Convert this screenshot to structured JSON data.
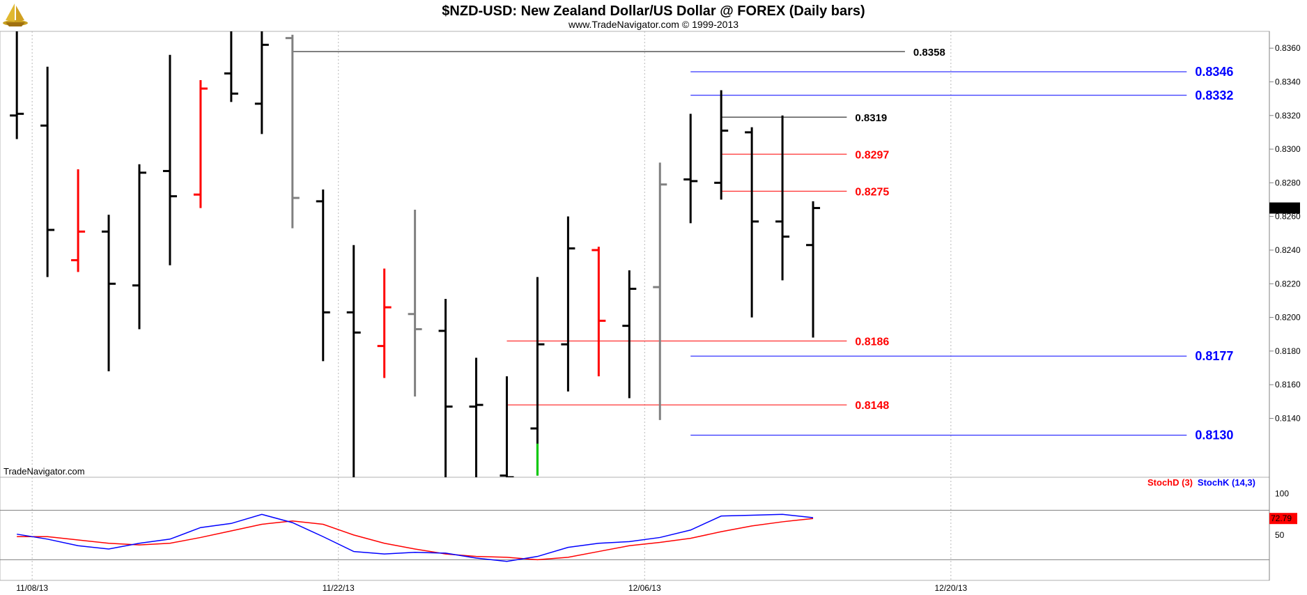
{
  "title": "$NZD-USD:  New Zealand Dollar/US Dollar @ FOREX  (Daily bars)",
  "subtitle": "www.TradeNavigator.com © 1999-2013",
  "watermark": "TradeNavigator.com",
  "logo_icon": "sailing-ship-icon",
  "colors": {
    "up_bar": "#000000",
    "down_bar": "#ff0000",
    "neutral_bar": "#808080",
    "signal_bar": "#00cc00",
    "stoch_d": "#ff0000",
    "stoch_k": "#0000ff",
    "level_black": "#000000",
    "level_red": "#ff0000",
    "level_blue": "#0000ff"
  },
  "chart_data": [
    {
      "type": "ohlc",
      "ylim": [
        0.8105,
        0.837
      ],
      "y_ticks": [
        "0.8360",
        "0.8340",
        "0.8320",
        "0.8300",
        "0.8280",
        "0.8260",
        "0.8240",
        "0.8220",
        "0.8200",
        "0.8180",
        "0.8160",
        "0.8140"
      ],
      "x_ticks": [
        "11/08/13",
        "11/22/13",
        "12/06/13",
        "12/20/13"
      ],
      "x_tick_index": [
        0.5,
        10.5,
        20.5,
        30.5
      ],
      "x_range": [
        -0.55,
        40.9
      ],
      "grid": "vertical-dotted",
      "last_price": "0.8265",
      "bars": [
        {
          "o": 0.832,
          "h": 0.8385,
          "l": 0.8306,
          "c": 0.8321,
          "color": "up"
        },
        {
          "o": 0.8314,
          "h": 0.8349,
          "l": 0.8224,
          "c": 0.8252,
          "color": "up"
        },
        {
          "o": 0.8234,
          "h": 0.8288,
          "l": 0.8227,
          "c": 0.8251,
          "color": "down"
        },
        {
          "o": 0.8251,
          "h": 0.8261,
          "l": 0.8168,
          "c": 0.822,
          "color": "up"
        },
        {
          "o": 0.8219,
          "h": 0.8291,
          "l": 0.8193,
          "c": 0.8286,
          "color": "up"
        },
        {
          "o": 0.8287,
          "h": 0.8356,
          "l": 0.8231,
          "c": 0.8272,
          "color": "up"
        },
        {
          "o": 0.8273,
          "h": 0.8341,
          "l": 0.8265,
          "c": 0.8336,
          "color": "down"
        },
        {
          "o": 0.8345,
          "h": 0.8375,
          "l": 0.8328,
          "c": 0.8333,
          "color": "up"
        },
        {
          "o": 0.8327,
          "h": 0.8372,
          "l": 0.8309,
          "c": 0.8362,
          "color": "up"
        },
        {
          "o": 0.8366,
          "h": 0.8368,
          "l": 0.8253,
          "c": 0.8271,
          "color": "neutral"
        },
        {
          "o": 0.8269,
          "h": 0.8276,
          "l": 0.8174,
          "c": 0.8203,
          "color": "up"
        },
        {
          "o": 0.8203,
          "h": 0.8243,
          "l": 0.8105,
          "c": 0.8191,
          "color": "up"
        },
        {
          "o": 0.8183,
          "h": 0.8229,
          "l": 0.8164,
          "c": 0.8206,
          "color": "down"
        },
        {
          "o": 0.8202,
          "h": 0.8264,
          "l": 0.8153,
          "c": 0.8193,
          "color": "neutral"
        },
        {
          "o": 0.8192,
          "h": 0.8211,
          "l": 0.8102,
          "c": 0.8147,
          "color": "up"
        },
        {
          "o": 0.8147,
          "h": 0.8176,
          "l": 0.8102,
          "c": 0.8148,
          "color": "up"
        },
        {
          "o": 0.8106,
          "h": 0.8165,
          "l": 0.8102,
          "c": 0.8105,
          "color": "up"
        },
        {
          "o": 0.8134,
          "h": 0.8224,
          "l": 0.8106,
          "c": 0.8184,
          "color": "up"
        },
        {
          "o": 0.8184,
          "h": 0.826,
          "l": 0.8156,
          "c": 0.8241,
          "color": "up"
        },
        {
          "o": 0.824,
          "h": 0.8242,
          "l": 0.8165,
          "c": 0.8198,
          "color": "down"
        },
        {
          "o": 0.8195,
          "h": 0.8228,
          "l": 0.8152,
          "c": 0.8217,
          "color": "up"
        },
        {
          "o": 0.8218,
          "h": 0.8292,
          "l": 0.8139,
          "c": 0.8279,
          "color": "neutral"
        },
        {
          "o": 0.8282,
          "h": 0.8321,
          "l": 0.8256,
          "c": 0.8281,
          "color": "up"
        },
        {
          "o": 0.828,
          "h": 0.8335,
          "l": 0.827,
          "c": 0.8311,
          "color": "up"
        },
        {
          "o": 0.831,
          "h": 0.8313,
          "l": 0.82,
          "c": 0.8257,
          "color": "up"
        },
        {
          "o": 0.8257,
          "h": 0.832,
          "l": 0.8222,
          "c": 0.8248,
          "color": "up"
        },
        {
          "o": 0.8243,
          "h": 0.8269,
          "l": 0.8188,
          "c": 0.8265,
          "color": "up"
        }
      ],
      "signal": {
        "bar": 17,
        "from": 0.8106,
        "to": 0.8125
      },
      "levels": [
        {
          "value": 0.8358,
          "label": "0.8358",
          "color": "black",
          "from": 9.0,
          "to": 29.0,
          "label_size": 15
        },
        {
          "value": 0.8346,
          "label": "0.8346",
          "color": "blue",
          "from": 22.0,
          "to": 38.2,
          "label_size": 18
        },
        {
          "value": 0.8332,
          "label": "0.8332",
          "color": "blue",
          "from": 22.0,
          "to": 38.2,
          "label_size": 18
        },
        {
          "value": 0.8319,
          "label": "0.8319",
          "color": "black",
          "from": 23.0,
          "to": 27.1,
          "label_size": 15
        },
        {
          "value": 0.8297,
          "label": "0.8297",
          "color": "red",
          "from": 23.0,
          "to": 27.1,
          "label_size": 16
        },
        {
          "value": 0.8275,
          "label": "0.8275",
          "color": "red",
          "from": 23.0,
          "to": 27.1,
          "label_size": 16
        },
        {
          "value": 0.8186,
          "label": "0.8186",
          "color": "red",
          "from": 16.0,
          "to": 27.1,
          "label_size": 16
        },
        {
          "value": 0.8177,
          "label": "0.8177",
          "color": "blue",
          "from": 22.0,
          "to": 38.2,
          "label_size": 18
        },
        {
          "value": 0.8148,
          "label": "0.8148",
          "color": "red",
          "from": 16.0,
          "to": 27.1,
          "label_size": 16
        },
        {
          "value": 0.813,
          "label": "0.8130",
          "color": "blue",
          "from": 22.0,
          "to": 38.2,
          "label_size": 18
        }
      ]
    },
    {
      "type": "line",
      "legend": [
        "StochD (3)",
        "StochK (14,3)"
      ],
      "legend_position": "top-right",
      "ylim": [
        -5,
        120
      ],
      "y_ticks": [
        "100",
        "50"
      ],
      "ref_lines": [
        80,
        20
      ],
      "last_value": "72.79",
      "series": [
        {
          "name": "StochD (3)",
          "color": "red",
          "values": [
            48,
            48,
            44,
            40,
            38,
            40,
            47,
            55,
            63,
            67,
            63,
            50,
            40,
            33,
            27,
            24,
            23,
            20,
            23,
            30,
            37,
            41,
            46,
            54,
            61,
            66,
            70
          ]
        },
        {
          "name": "StochK (14,3)",
          "color": "blue",
          "values": [
            51,
            45,
            37,
            33,
            40,
            45,
            59,
            64,
            75,
            65,
            48,
            30,
            27,
            29,
            28,
            22,
            18,
            24,
            35,
            40,
            42,
            47,
            56,
            73,
            74,
            75,
            71
          ]
        }
      ]
    }
  ]
}
